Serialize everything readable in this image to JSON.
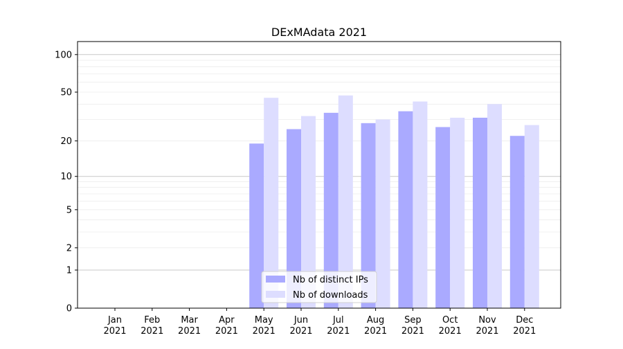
{
  "chart_data": {
    "type": "bar",
    "title": "DExMAdata 2021",
    "xlabel": "",
    "ylabel": "",
    "yscale": "log(1+x)",
    "ylim": [
      0,
      120
    ],
    "yticks": [
      0,
      1,
      2,
      5,
      10,
      20,
      50,
      100
    ],
    "categories": [
      "Jan 2021",
      "Feb 2021",
      "Mar 2021",
      "Apr 2021",
      "May 2021",
      "Jun 2021",
      "Jul 2021",
      "Aug 2021",
      "Sep 2021",
      "Oct 2021",
      "Nov 2021",
      "Dec 2021"
    ],
    "series": [
      {
        "name": "Nb of distinct IPs",
        "color": "#aaaaff",
        "values": [
          0,
          0,
          0,
          0,
          19,
          25,
          34,
          28,
          35,
          26,
          31,
          22
        ]
      },
      {
        "name": "Nb of downloads",
        "color": "#ddddff",
        "values": [
          0,
          0,
          0,
          0,
          45,
          32,
          47,
          30,
          42,
          31,
          40,
          27
        ]
      }
    ],
    "grid": true,
    "legend_position": "lower-center"
  }
}
